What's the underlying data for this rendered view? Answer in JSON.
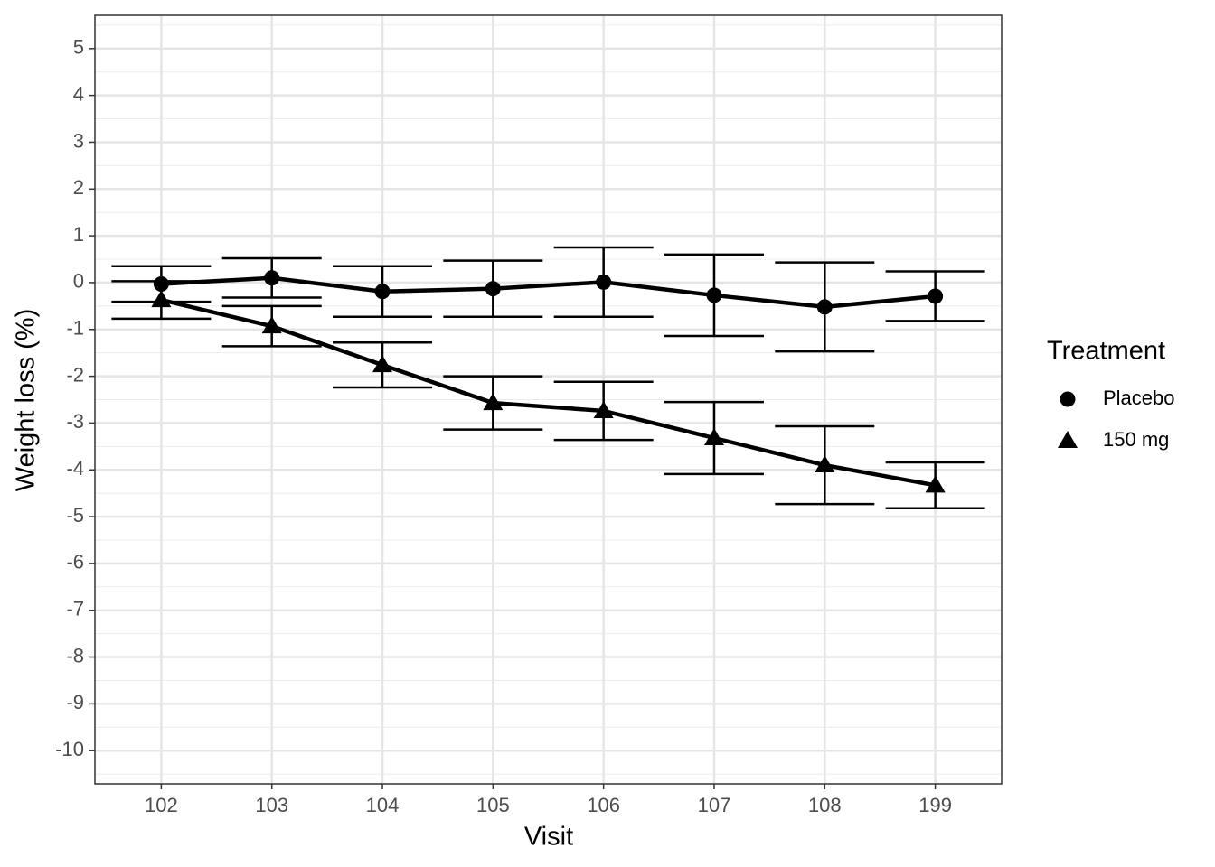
{
  "chart_data": {
    "type": "line",
    "x_label": "Visit",
    "y_label": "Weight loss (%)",
    "categories": [
      "102",
      "103",
      "104",
      "105",
      "106",
      "107",
      "108",
      "199"
    ],
    "series": [
      {
        "name": "Placebo",
        "color": "#000000",
        "shape": "circle",
        "values": [
          -0.03,
          0.1,
          -0.19,
          -0.13,
          0.01,
          -0.27,
          -0.52,
          -0.29
        ],
        "errors": [
          0.38,
          0.42,
          0.54,
          0.6,
          0.74,
          0.87,
          0.95,
          0.53
        ]
      },
      {
        "name": "150 mg",
        "color": "#000000",
        "shape": "triangle",
        "values": [
          -0.37,
          -0.93,
          -1.76,
          -2.57,
          -2.74,
          -3.32,
          -3.9,
          -4.33
        ],
        "errors": [
          0.4,
          0.43,
          0.48,
          0.57,
          0.62,
          0.77,
          0.83,
          0.49
        ]
      }
    ],
    "ylim": [
      -10.71,
      5.71
    ],
    "yticks": [
      5,
      4,
      3,
      2,
      1,
      0,
      -1,
      -2,
      -3,
      -4,
      -5,
      -6,
      -7,
      -8,
      -9,
      -10
    ],
    "grid": true,
    "minor_grid": true,
    "legend_title": "Treatment",
    "legend_position": "right"
  }
}
